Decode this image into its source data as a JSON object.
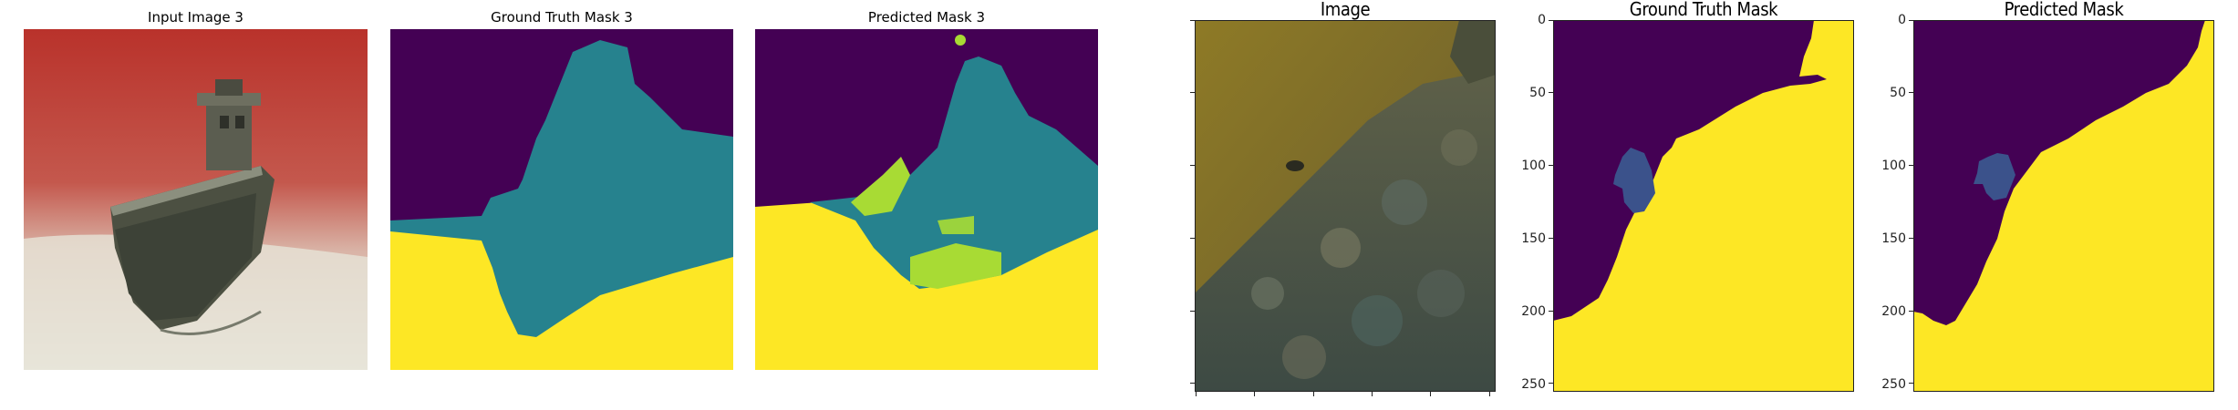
{
  "left_figure": {
    "titles": [
      "Input Image 3",
      "Ground Truth Mask 3",
      "Predicted Mask 3"
    ]
  },
  "right_figure": {
    "titles": [
      "Image",
      "Ground Truth Mask",
      "Predicted Mask"
    ],
    "y_ticks": [
      "0",
      "50",
      "100",
      "150",
      "200",
      "250"
    ]
  },
  "colors": {
    "purple": "#440154",
    "teal": "#26828e",
    "yellow": "#fde725",
    "green": "#a8db34",
    "blue": "#3b528b"
  }
}
